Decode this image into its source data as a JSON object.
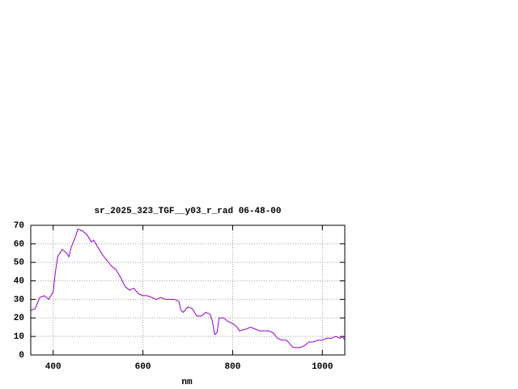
{
  "chart_data": {
    "type": "line",
    "title": "sr_2025_323_TGF__y03_r_rad 06-48-00",
    "x_label": "nm",
    "x": [
      350,
      360,
      370,
      380,
      390,
      400,
      405,
      410,
      420,
      430,
      435,
      440,
      450,
      455,
      465,
      475,
      485,
      490,
      500,
      510,
      520,
      530,
      540,
      550,
      560,
      570,
      580,
      590,
      600,
      610,
      620,
      630,
      640,
      650,
      660,
      670,
      680,
      685,
      690,
      700,
      710,
      720,
      730,
      740,
      750,
      755,
      760,
      765,
      770,
      780,
      790,
      800,
      810,
      815,
      830,
      840,
      850,
      860,
      880,
      890,
      900,
      910,
      920,
      935,
      950,
      960,
      970,
      980,
      990,
      1000,
      1010,
      1020,
      1030,
      1040,
      1045,
      1050
    ],
    "series": [
      {
        "color": "#9400d3",
        "values": [
          24,
          25,
          31,
          32,
          30,
          34,
          45,
          53,
          57,
          55,
          53,
          58,
          64,
          68,
          67,
          65,
          61,
          62,
          58,
          54,
          51,
          48,
          46,
          42,
          37,
          35,
          36,
          33,
          32,
          32,
          31,
          30,
          31,
          30,
          30,
          30,
          29,
          24,
          23,
          26,
          25,
          21,
          21,
          23,
          22,
          18,
          11,
          12,
          20,
          20,
          18,
          17,
          15,
          13,
          14,
          15,
          14,
          13,
          13,
          12,
          9,
          8,
          8,
          4,
          4,
          5,
          7,
          7,
          8,
          8,
          9,
          9,
          10,
          9,
          10,
          8
        ]
      }
    ],
    "xlim": [
      350,
      1050
    ],
    "xticks": [
      400,
      600,
      800,
      1000
    ],
    "ylim": [
      0,
      70
    ],
    "yticks": [
      0,
      10,
      20,
      30,
      40,
      50,
      60,
      70
    ],
    "grid": true
  }
}
